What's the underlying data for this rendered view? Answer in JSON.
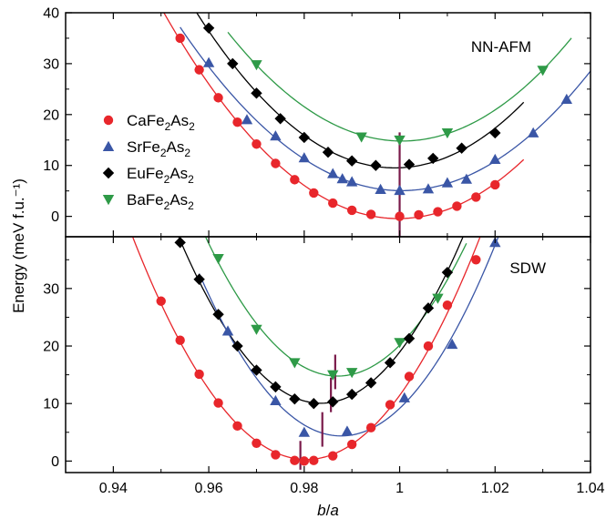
{
  "chart_data": {
    "type": "scatter",
    "xlabel_italic_b": "b",
    "xlabel_slash": "/",
    "xlabel_italic_a": "a",
    "ylabel": "Energy (meV f.u.⁻¹)",
    "xlim": [
      0.93,
      1.04
    ],
    "xticks": [
      "0.94",
      "0.96",
      "0.98",
      "1",
      "1.02",
      "1.04"
    ],
    "colors": {
      "Ca": "#e8262b",
      "Sr": "#3a56a6",
      "Eu": "#000000",
      "Ba": "#2e9a47",
      "marker_line": "#7a1a4a"
    },
    "legend": [
      {
        "key": "Ca",
        "symbol": "circle",
        "prefix": "CaFe",
        "sub1": "2",
        "mid": "As",
        "sub2": "2"
      },
      {
        "key": "Sr",
        "symbol": "triangle-up",
        "prefix": "SrFe",
        "sub1": "2",
        "mid": "As",
        "sub2": "2"
      },
      {
        "key": "Eu",
        "symbol": "diamond",
        "prefix": "EuFe",
        "sub1": "2",
        "mid": "As",
        "sub2": "2"
      },
      {
        "key": "Ba",
        "symbol": "triangle-down",
        "prefix": "BaFe",
        "sub1": "2",
        "mid": "As",
        "sub2": "2"
      }
    ],
    "panels": [
      {
        "label": "NN-AFM",
        "ylim": [
          -4,
          40
        ],
        "yticks": [
          "0",
          "10",
          "20",
          "30",
          "40"
        ],
        "minima": [
          1.0
        ],
        "series": [
          {
            "key": "Ca",
            "points": [
              [
                0.954,
                35
              ],
              [
                0.958,
                28.8
              ],
              [
                0.962,
                23.3
              ],
              [
                0.966,
                18.5
              ],
              [
                0.97,
                14.2
              ],
              [
                0.974,
                10.4
              ],
              [
                0.978,
                7.2
              ],
              [
                0.982,
                4.6
              ],
              [
                0.986,
                2.6
              ],
              [
                0.99,
                1.2
              ],
              [
                0.994,
                0.4
              ],
              [
                1.0,
                0.0
              ],
              [
                1.004,
                0.3
              ],
              [
                1.008,
                0.9
              ],
              [
                1.012,
                2.0
              ],
              [
                1.016,
                3.8
              ],
              [
                1.02,
                6.2
              ]
            ]
          },
          {
            "key": "Sr",
            "points": [
              [
                0.96,
                30.2
              ],
              [
                0.968,
                19.0
              ],
              [
                0.974,
                15.8
              ],
              [
                0.98,
                11.5
              ],
              [
                0.986,
                8.4
              ],
              [
                0.988,
                7.4
              ],
              [
                0.99,
                6.8
              ],
              [
                0.996,
                5.3
              ],
              [
                1.0,
                5.1
              ],
              [
                1.006,
                5.4
              ],
              [
                1.01,
                6.6
              ],
              [
                1.014,
                7.3
              ],
              [
                1.02,
                11.2
              ],
              [
                1.028,
                16.4
              ],
              [
                1.035,
                23.0
              ]
            ]
          },
          {
            "key": "Eu",
            "points": [
              [
                0.96,
                37.0
              ],
              [
                0.965,
                30.0
              ],
              [
                0.97,
                24.2
              ],
              [
                0.975,
                19.2
              ],
              [
                0.98,
                15.5
              ],
              [
                0.985,
                12.6
              ],
              [
                0.99,
                10.9
              ],
              [
                0.995,
                10.0
              ],
              [
                1.002,
                10.2
              ],
              [
                1.007,
                11.4
              ],
              [
                1.013,
                13.4
              ],
              [
                1.02,
                16.4
              ]
            ]
          },
          {
            "key": "Ba",
            "points": [
              [
                0.97,
                29.8
              ],
              [
                0.992,
                15.6
              ],
              [
                1.0,
                15.0
              ],
              [
                1.01,
                16.4
              ],
              [
                1.03,
                28.7
              ]
            ]
          }
        ]
      },
      {
        "label": "SDW",
        "ylim": [
          -2,
          39
        ],
        "yticks": [
          "0",
          "10",
          "20",
          "30"
        ],
        "minima": [
          0.9792,
          0.9838,
          0.9856,
          0.9865
        ],
        "series": [
          {
            "key": "Ca",
            "points": [
              [
                0.95,
                27.8
              ],
              [
                0.954,
                21.0
              ],
              [
                0.958,
                15.1
              ],
              [
                0.962,
                10.1
              ],
              [
                0.966,
                6.1
              ],
              [
                0.97,
                3.1
              ],
              [
                0.974,
                1.1
              ],
              [
                0.978,
                0.1
              ],
              [
                0.98,
                0.0
              ],
              [
                0.982,
                0.1
              ],
              [
                0.986,
                0.9
              ],
              [
                0.99,
                2.9
              ],
              [
                0.994,
                5.8
              ],
              [
                0.998,
                9.8
              ],
              [
                1.002,
                14.7
              ],
              [
                1.006,
                20.0
              ],
              [
                1.01,
                27.1
              ],
              [
                1.016,
                35.0
              ]
            ]
          },
          {
            "key": "Sr",
            "points": [
              [
                0.964,
                22.6
              ],
              [
                0.974,
                10.5
              ],
              [
                0.98,
                5.0
              ],
              [
                0.989,
                5.2
              ],
              [
                1.001,
                11.0
              ],
              [
                1.011,
                20.3
              ],
              [
                1.02,
                38.0
              ]
            ]
          },
          {
            "key": "Eu",
            "points": [
              [
                0.954,
                38.0
              ],
              [
                0.958,
                31.6
              ],
              [
                0.962,
                25.5
              ],
              [
                0.966,
                20.0
              ],
              [
                0.97,
                15.8
              ],
              [
                0.974,
                12.9
              ],
              [
                0.978,
                10.8
              ],
              [
                0.982,
                10.0
              ],
              [
                0.986,
                10.3
              ],
              [
                0.99,
                11.6
              ],
              [
                0.994,
                13.6
              ],
              [
                0.998,
                17.1
              ],
              [
                1.002,
                21.3
              ],
              [
                1.006,
                26.6
              ],
              [
                1.01,
                32.8
              ]
            ]
          },
          {
            "key": "Ba",
            "points": [
              [
                0.962,
                35.2
              ],
              [
                0.97,
                22.9
              ],
              [
                0.978,
                17.1
              ],
              [
                0.986,
                15.0
              ],
              [
                0.99,
                15.4
              ],
              [
                1.0,
                20.6
              ],
              [
                1.008,
                28.3
              ]
            ]
          }
        ]
      }
    ]
  }
}
